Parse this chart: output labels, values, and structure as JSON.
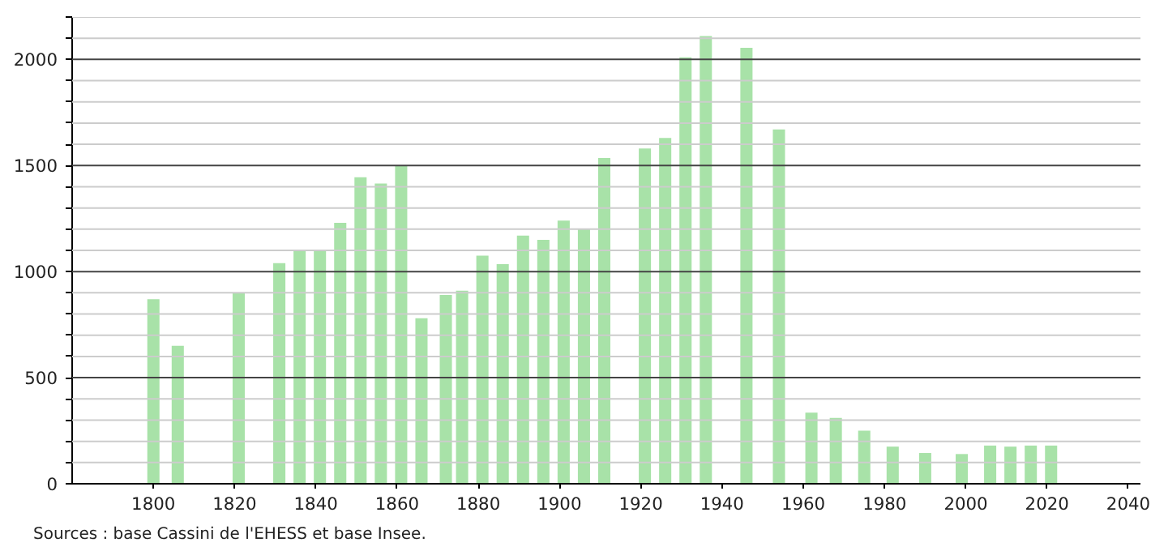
{
  "chart_data": {
    "type": "bar",
    "x": [
      1800,
      1806,
      1821,
      1831,
      1836,
      1841,
      1846,
      1851,
      1856,
      1861,
      1866,
      1872,
      1876,
      1881,
      1886,
      1891,
      1896,
      1901,
      1906,
      1911,
      1921,
      1926,
      1931,
      1936,
      1946,
      1954,
      1962,
      1968,
      1975,
      1982,
      1990,
      1999,
      2006,
      2011,
      2016,
      2021
    ],
    "values": [
      870,
      650,
      900,
      1040,
      1100,
      1100,
      1230,
      1445,
      1415,
      1500,
      780,
      890,
      910,
      1075,
      1035,
      1170,
      1150,
      1240,
      1200,
      1535,
      1580,
      1630,
      2010,
      2110,
      2055,
      1670,
      335,
      310,
      250,
      175,
      145,
      140,
      180,
      175,
      180,
      180
    ],
    "color": "#a8e2a8",
    "xlim": [
      1780,
      2043
    ],
    "xticks": [
      1800,
      1820,
      1840,
      1860,
      1880,
      1900,
      1920,
      1940,
      1960,
      1980,
      2000,
      2020,
      2040
    ],
    "ylim": [
      0,
      2200
    ],
    "yticks": [
      0,
      {
        "value": 100,
        "label": null
      },
      {
        "value": 200,
        "label": null
      },
      {
        "value": 300,
        "label": null
      },
      {
        "value": 400,
        "label": null
      },
      500,
      {
        "value": 600,
        "label": null
      },
      {
        "value": 700,
        "label": null
      },
      {
        "value": 800,
        "label": null
      },
      {
        "value": 900,
        "label": null
      },
      1000,
      {
        "value": 1100,
        "label": null
      },
      {
        "value": 1200,
        "label": null
      },
      {
        "value": 1300,
        "label": null
      },
      {
        "value": 1400,
        "label": null
      },
      1500,
      {
        "value": 1600,
        "label": null
      },
      {
        "value": 1700,
        "label": null
      },
      {
        "value": 1800,
        "label": null
      },
      {
        "value": 1900,
        "label": null
      },
      2000,
      {
        "value": 2100,
        "label": null
      },
      {
        "value": 2200,
        "label": null
      }
    ],
    "grid": "y",
    "annotations": [
      "Sources : base Cassini de l'EHESS et base Insee."
    ]
  }
}
